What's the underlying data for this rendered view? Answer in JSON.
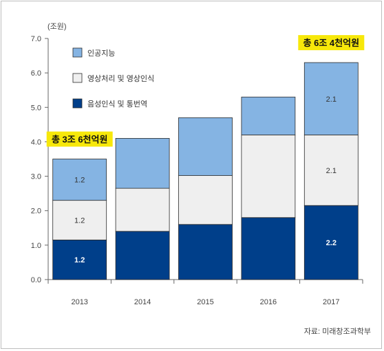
{
  "chart_data": {
    "type": "bar",
    "stacked": true,
    "unit_label": "(조원)",
    "categories": [
      "2013",
      "2014",
      "2015",
      "2016",
      "2017"
    ],
    "ylim": [
      0,
      7
    ],
    "yticks": [
      "0.0",
      "1.0",
      "2.0",
      "3.0",
      "4.0",
      "5.0",
      "6.0",
      "7.0"
    ],
    "series": [
      {
        "name": "음성인식 및 통번역",
        "color": "#003f8a",
        "values": [
          1.15,
          1.4,
          1.6,
          1.8,
          2.15
        ],
        "labels": [
          "1.2",
          "",
          "",
          "",
          "2.2"
        ]
      },
      {
        "name": "영상처리 및 영상인식",
        "color": "#efefef",
        "values": [
          1.15,
          1.25,
          1.42,
          2.4,
          2.05
        ],
        "labels": [
          "1.2",
          "",
          "",
          "",
          "2.1"
        ]
      },
      {
        "name": "인공지능",
        "color": "#85b4e3",
        "values": [
          1.2,
          1.45,
          1.68,
          1.1,
          2.1
        ],
        "labels": [
          "1.2",
          "",
          "",
          "",
          "2.1"
        ]
      }
    ],
    "callouts": [
      {
        "text": "총 3조 6천억원",
        "category": "2013"
      },
      {
        "text": "총 6조 4천억원",
        "category": "2017"
      }
    ],
    "legend_position": "top-left",
    "grid": false
  },
  "source": "자료: 미래창조과학부"
}
